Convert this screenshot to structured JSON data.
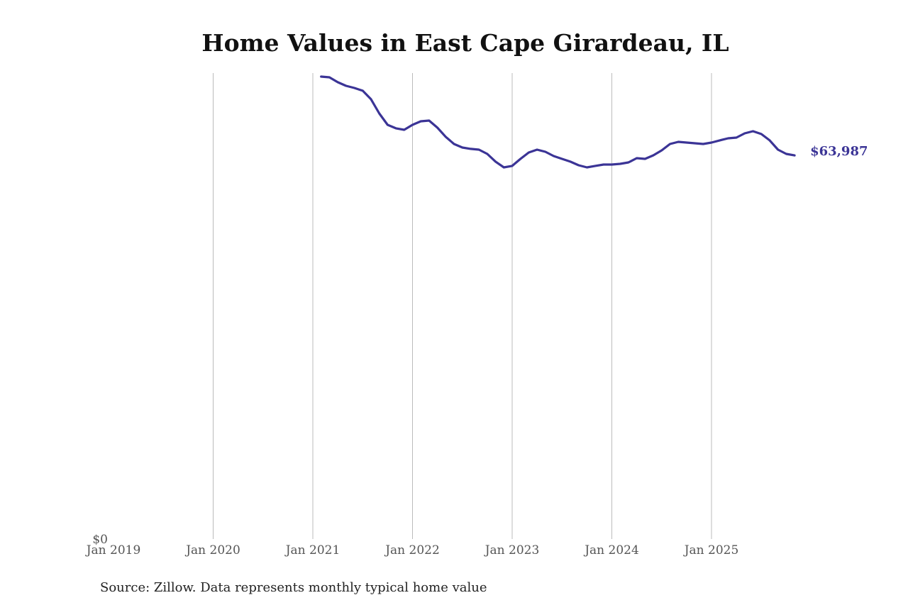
{
  "chart_data": {
    "type": "line",
    "title": "Home Values in East Cape Girardeau, IL",
    "xlabel": "",
    "ylabel": "",
    "source": "Source: Zillow. Data represents monthly typical home value",
    "x_ticks": [
      "Jan 2019",
      "Jan 2020",
      "Jan 2021",
      "Jan 2022",
      "Jan 2023",
      "Jan 2024",
      "Jan 2025"
    ],
    "y_ticks": [
      "$0"
    ],
    "ylim": [
      0,
      77720
    ],
    "xlim": [
      "2019-01",
      "2025-12"
    ],
    "grid": "vertical",
    "line_color": "#3b3496",
    "end_label": "$63,987",
    "series": [
      {
        "name": "Typical home value",
        "start": "2021-02",
        "values": [
          77130,
          77010,
          76190,
          75590,
          75240,
          74770,
          73350,
          70980,
          69090,
          68500,
          68260,
          69090,
          69680,
          69800,
          68610,
          67080,
          65890,
          65300,
          65070,
          64950,
          64240,
          62940,
          61990,
          62230,
          63410,
          64470,
          64950,
          64590,
          63880,
          63410,
          62940,
          62340,
          61990,
          62230,
          62460,
          62460,
          62580,
          62820,
          63530,
          63410,
          64000,
          64830,
          65890,
          66250,
          66130,
          66010,
          65890,
          66130,
          66490,
          66840,
          66960,
          67670,
          68020,
          67550,
          66490,
          64950,
          64240,
          63987
        ]
      }
    ]
  }
}
